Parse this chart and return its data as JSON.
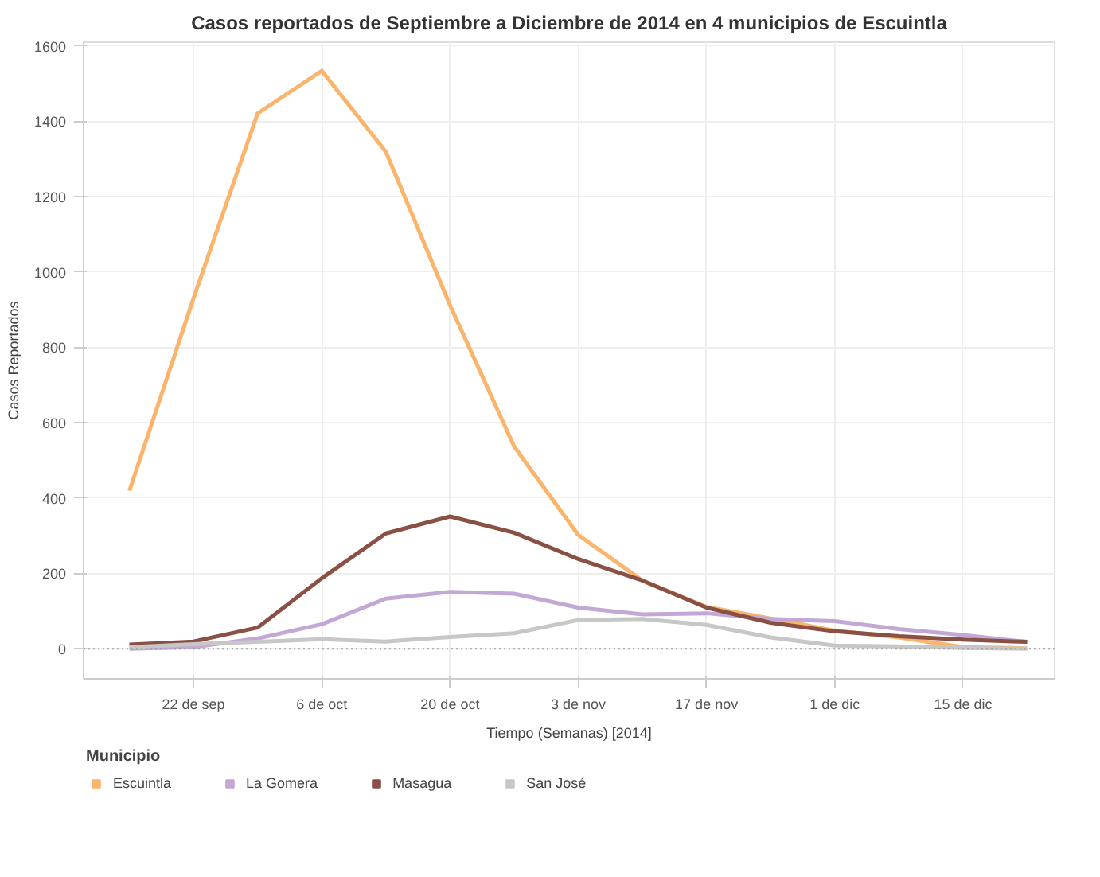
{
  "chart_data": {
    "type": "line",
    "title": "Casos reportados de Septiembre a Diciembre de 2014 en 4 municipios de Escuintla",
    "xlabel": "Tiempo (Semanas) [2014]",
    "ylabel": "Casos Reportados",
    "legend_title": "Municipio",
    "x": [
      "2014-09-15",
      "2014-09-22",
      "2014-09-29",
      "2014-10-06",
      "2014-10-13",
      "2014-10-20",
      "2014-10-27",
      "2014-11-03",
      "2014-11-10",
      "2014-11-17",
      "2014-11-24",
      "2014-12-01",
      "2014-12-08",
      "2014-12-15",
      "2014-12-22"
    ],
    "series": [
      {
        "name": "Escuintla",
        "color": "#fbb46c",
        "values": [
          419,
          930,
          1421,
          1534,
          1319,
          912,
          537,
          302,
          181,
          111,
          80,
          48,
          30,
          4,
          1
        ]
      },
      {
        "name": "La Gomera",
        "color": "#c3a8d6",
        "values": [
          0,
          4,
          27,
          65,
          133,
          151,
          146,
          109,
          91,
          94,
          79,
          73,
          52,
          36,
          18
        ]
      },
      {
        "name": "Masagua",
        "color": "#8a5045",
        "values": [
          11,
          19,
          56,
          187,
          306,
          351,
          308,
          238,
          181,
          109,
          69,
          46,
          33,
          24,
          18
        ]
      },
      {
        "name": "San José",
        "color": "#c7c7c7",
        "values": [
          4,
          12,
          18,
          25,
          19,
          31,
          41,
          76,
          79,
          63,
          30,
          8,
          6,
          2,
          0
        ]
      }
    ],
    "xlim": [
      "2014-09-10",
      "2014-12-25"
    ],
    "xticks": [
      {
        "value": "2014-09-22",
        "label": "22 de sep"
      },
      {
        "value": "2014-10-06",
        "label": "6 de oct"
      },
      {
        "value": "2014-10-20",
        "label": "20 de oct"
      },
      {
        "value": "2014-11-03",
        "label": "3 de nov"
      },
      {
        "value": "2014-11-17",
        "label": "17 de nov"
      },
      {
        "value": "2014-12-01",
        "label": "1 de dic"
      },
      {
        "value": "2014-12-15",
        "label": "15 de dic"
      }
    ],
    "ylim": [
      -80,
      1610
    ],
    "yticks": [
      0,
      200,
      400,
      600,
      800,
      1000,
      1200,
      1400,
      1600
    ],
    "ref_lines": [
      {
        "axis": "y",
        "value": 0,
        "color": "#999999",
        "line_style": "dotted"
      }
    ],
    "grid": true,
    "legend": "bottom",
    "marker": "none",
    "line_style": "solid"
  }
}
